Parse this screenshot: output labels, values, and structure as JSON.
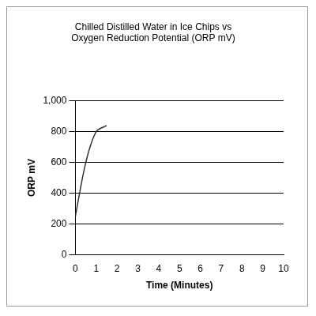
{
  "chart_data": {
    "type": "line",
    "title": [
      "Chilled Distilled Water in Ice Chips vs",
      "Oxygen Reduction Potential (ORP mV)"
    ],
    "x_label": "Time (Minutes)",
    "y_label": "ORP mV",
    "x": [
      0,
      0.5,
      1,
      1.5
    ],
    "values": [
      250,
      600,
      800,
      840
    ],
    "color": "#333333",
    "xlim": [
      0,
      10
    ],
    "xticks": [
      0,
      1,
      2,
      3,
      4,
      5,
      6,
      7,
      8,
      9,
      10
    ],
    "ylim": [
      0,
      1000
    ],
    "yticks": [
      0,
      200,
      400,
      600,
      800,
      1000
    ],
    "grid": true
  }
}
